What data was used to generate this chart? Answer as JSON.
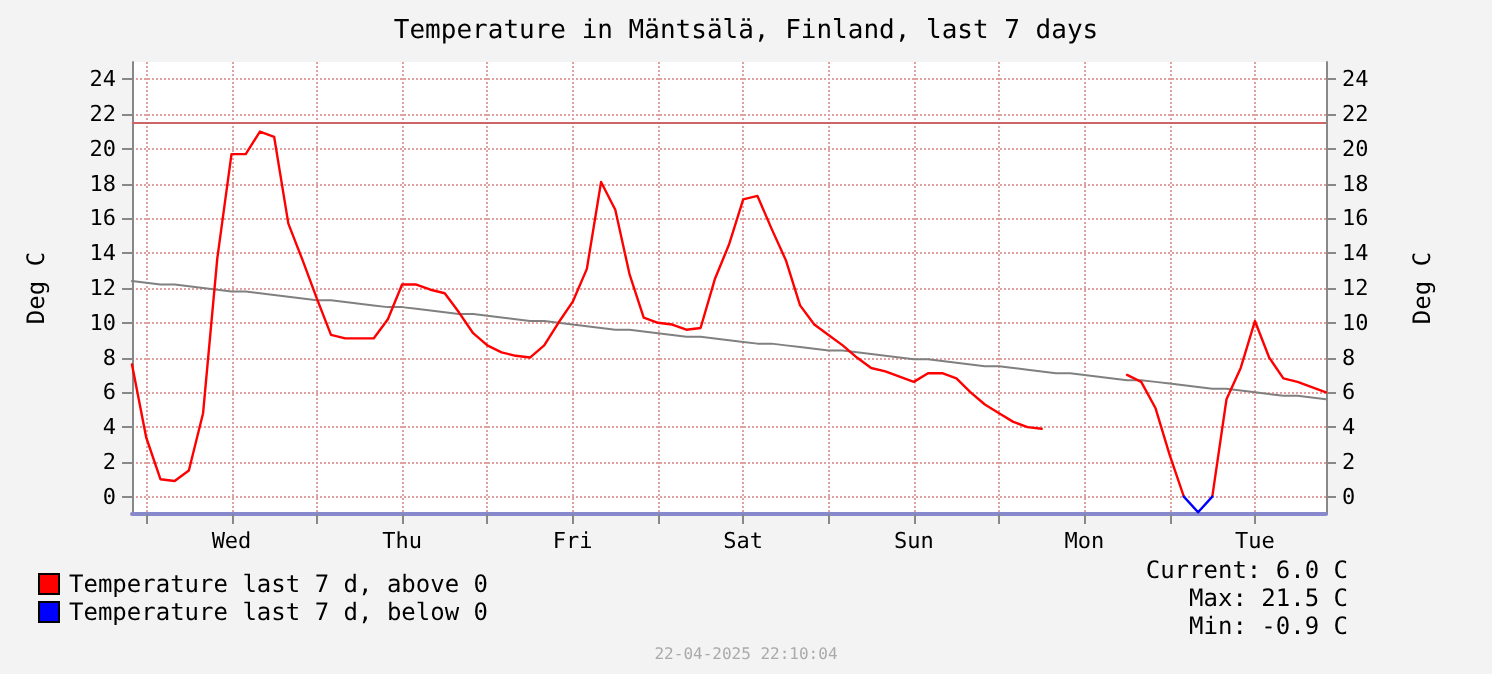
{
  "chart_data": {
    "type": "line",
    "title": "Temperature in Mäntsälä, Finland, last 7 days",
    "ylabel": "Deg C",
    "y2label": "Deg C",
    "categories": [
      null,
      null,
      null,
      null,
      null,
      null,
      null,
      "Wed",
      null,
      null,
      null,
      null,
      null,
      null,
      null,
      null,
      null,
      null,
      null,
      "Thu",
      null,
      null,
      null,
      null,
      null,
      null,
      null,
      null,
      null,
      null,
      null,
      "Fri",
      null,
      null,
      null,
      null,
      null,
      null,
      null,
      null,
      null,
      null,
      null,
      "Sat",
      null,
      null,
      null,
      null,
      null,
      null,
      null,
      null,
      null,
      null,
      null,
      "Sun",
      null,
      null,
      null,
      null,
      null,
      null,
      null,
      null,
      null,
      null,
      null,
      "Mon",
      null,
      null,
      null,
      null,
      null,
      null,
      null,
      null,
      null,
      null,
      null,
      "Tue",
      null,
      null,
      null,
      null,
      null
    ],
    "ylim": [
      -1,
      25
    ],
    "y2lim": [
      -1,
      25
    ],
    "yticks": [
      0,
      2,
      4,
      6,
      8,
      10,
      12,
      14,
      16,
      18,
      20,
      22,
      24
    ],
    "y2ticks": [
      0,
      2,
      4,
      6,
      8,
      10,
      12,
      14,
      16,
      18,
      20,
      22,
      24
    ],
    "grid": true,
    "legend": "bottom left",
    "marker": "none",
    "line_style": "solid",
    "series": [
      {
        "name": "Temperature last 7 d, above 0",
        "color": "#ff0000",
        "values": [
          7.6,
          3.4,
          1.0,
          0.9,
          1.5,
          4.8,
          13.7,
          19.7,
          19.7,
          21.0,
          20.7,
          15.7,
          13.6,
          11.4,
          9.3,
          9.1,
          9.1,
          9.1,
          10.2,
          12.2,
          12.2,
          11.9,
          11.7,
          10.6,
          9.4,
          8.7,
          8.3,
          8.1,
          8.0,
          8.7,
          10.0,
          11.2,
          13.1,
          18.1,
          16.5,
          12.8,
          10.3,
          10.0,
          9.9,
          9.6,
          9.7,
          12.5,
          14.5,
          17.1,
          17.3,
          15.4,
          13.6,
          11.0,
          9.9,
          9.3,
          8.7,
          8.0,
          7.4,
          7.2,
          6.9,
          6.6,
          7.1,
          7.1,
          6.8,
          6.0,
          5.3,
          4.8,
          4.3,
          4.0,
          3.9,
          null,
          null,
          null,
          null,
          null,
          7.0,
          6.6,
          5.1,
          2.4,
          0,
          null,
          0,
          5.6,
          7.4,
          10.1,
          8.0,
          6.8,
          6.6,
          6.3,
          6.0
        ]
      },
      {
        "name": "Temperature last 7 d, below 0",
        "color": "#0000ff",
        "values": [
          null,
          null,
          null,
          null,
          null,
          null,
          null,
          null,
          null,
          null,
          null,
          null,
          null,
          null,
          null,
          null,
          null,
          null,
          null,
          null,
          null,
          null,
          null,
          null,
          null,
          null,
          null,
          null,
          null,
          null,
          null,
          null,
          null,
          null,
          null,
          null,
          null,
          null,
          null,
          null,
          null,
          null,
          null,
          null,
          null,
          null,
          null,
          null,
          null,
          null,
          null,
          null,
          null,
          null,
          null,
          null,
          null,
          null,
          null,
          null,
          null,
          null,
          null,
          null,
          null,
          null,
          null,
          null,
          null,
          null,
          null,
          null,
          null,
          null,
          0,
          -0.9,
          0,
          null,
          null,
          null,
          null,
          null,
          null,
          null,
          null
        ]
      },
      {
        "type": "line",
        "color": "#808080",
        "values": [
          12.4,
          12.3,
          12.2,
          12.2,
          12.1,
          12.0,
          11.9,
          11.8,
          11.8,
          11.7,
          11.6,
          11.5,
          11.4,
          11.3,
          11.3,
          11.2,
          11.1,
          11.0,
          10.9,
          10.9,
          10.8,
          10.7,
          10.6,
          10.5,
          10.5,
          10.4,
          10.3,
          10.2,
          10.1,
          10.1,
          10.0,
          9.9,
          9.8,
          9.7,
          9.6,
          9.6,
          9.5,
          9.4,
          9.3,
          9.2,
          9.2,
          9.1,
          9.0,
          8.9,
          8.8,
          8.8,
          8.7,
          8.6,
          8.5,
          8.4,
          8.4,
          8.3,
          8.2,
          8.1,
          8.0,
          7.9,
          7.9,
          7.8,
          7.7,
          7.6,
          7.5,
          7.5,
          7.4,
          7.3,
          7.2,
          7.1,
          7.1,
          7.0,
          6.9,
          6.8,
          6.7,
          6.7,
          6.6,
          6.5,
          6.4,
          6.3,
          6.2,
          6.2,
          6.1,
          6.0,
          5.9,
          5.8,
          5.8,
          5.7,
          5.6
        ]
      }
    ],
    "ref_lines": [
      {
        "axis": "y",
        "value": 21.5,
        "label": null,
        "color": "#cc6666"
      }
    ],
    "annotations": [
      "Current: 6.0 C",
      "Max: 21.5 C",
      "Min: -0.9 C",
      "22-04-2025 22:10:04"
    ]
  }
}
